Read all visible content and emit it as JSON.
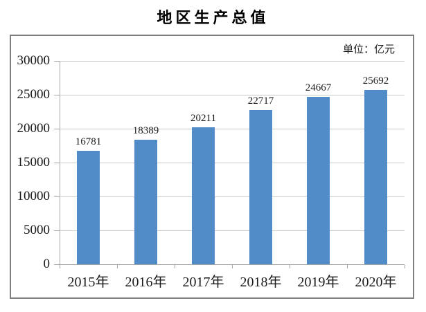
{
  "chart_data": {
    "type": "bar",
    "title": "地区生产总值",
    "unit_label": "单位：亿元",
    "categories": [
      "2015年",
      "2016年",
      "2017年",
      "2018年",
      "2019年",
      "2020年"
    ],
    "values": [
      16781,
      18389,
      20211,
      22717,
      24667,
      25692
    ],
    "value_labels": [
      "16781",
      "18389",
      "20211",
      "22717",
      "24667",
      "25692"
    ],
    "ylabel": "",
    "xlabel": "",
    "ylim": [
      0,
      30000
    ],
    "ytick_interval": 5000,
    "ytick_labels": [
      "0",
      "5000",
      "10000",
      "15000",
      "20000",
      "25000",
      "30000"
    ],
    "grid": "horizontal",
    "legend": "none",
    "colors": {
      "bar": "#518cc9",
      "gridline": "#c9c9c9",
      "axis": "#a6a6a6",
      "frame_border": "#7f7f7f",
      "text": "#1a1a1a",
      "background": "#ffffff"
    }
  }
}
